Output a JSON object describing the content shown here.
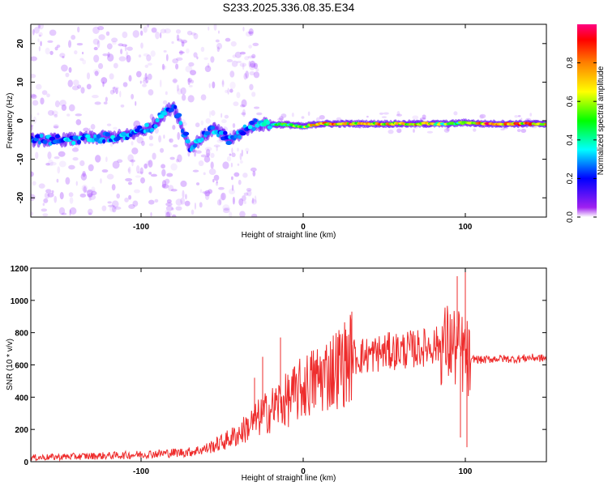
{
  "title": "S233.2025.336.08.35.E34",
  "chart_data": [
    {
      "type": "heatmap",
      "xlabel": "Height of straight line (km)",
      "ylabel": "Frequency (Hz)",
      "xlim": [
        -168,
        150
      ],
      "ylim": [
        -25,
        25
      ],
      "x_ticks": [
        -100,
        0,
        100
      ],
      "x_tick_labels": [
        "-100",
        "0",
        "100"
      ],
      "y_ticks": [
        -20,
        -10,
        0,
        10,
        20
      ],
      "y_tick_labels": [
        "-20",
        "-10",
        "0",
        "10",
        "20"
      ],
      "colorbar": {
        "label": "Normalized spectral amplitude",
        "range": [
          0,
          1
        ],
        "ticks": [
          0.0,
          0.2,
          0.4,
          0.6,
          0.8
        ],
        "tick_labels": [
          "0.0",
          "0.2",
          "0.4",
          "0.6",
          "0.8"
        ],
        "colors": [
          "#ffffff",
          "#8f00ff",
          "#0000ff",
          "#00ffff",
          "#00ff00",
          "#ffff00",
          "#ff8000",
          "#ff0000",
          "#ff0080"
        ]
      },
      "ridge": [
        {
          "x": -168,
          "f": -5,
          "amp": 0.3
        },
        {
          "x": -150,
          "f": -5,
          "amp": 0.35
        },
        {
          "x": -130,
          "f": -4.5,
          "amp": 0.35
        },
        {
          "x": -110,
          "f": -4,
          "amp": 0.35
        },
        {
          "x": -95,
          "f": -2,
          "amp": 0.35
        },
        {
          "x": -80,
          "f": 4,
          "amp": 0.3
        },
        {
          "x": -70,
          "f": -7,
          "amp": 0.35
        },
        {
          "x": -55,
          "f": -2,
          "amp": 0.35
        },
        {
          "x": -45,
          "f": -5,
          "amp": 0.3
        },
        {
          "x": -30,
          "f": -1,
          "amp": 0.35
        },
        {
          "x": -20,
          "f": -1,
          "amp": 0.5
        },
        {
          "x": -10,
          "f": -1,
          "amp": 0.55
        },
        {
          "x": 0,
          "f": -1.5,
          "amp": 0.65
        },
        {
          "x": 10,
          "f": -0.8,
          "amp": 0.9
        },
        {
          "x": 30,
          "f": -0.8,
          "amp": 0.85
        },
        {
          "x": 50,
          "f": -0.8,
          "amp": 0.85
        },
        {
          "x": 70,
          "f": -0.8,
          "amp": 0.85
        },
        {
          "x": 90,
          "f": -0.8,
          "amp": 0.6
        },
        {
          "x": 100,
          "f": -0.5,
          "amp": 0.6
        },
        {
          "x": 110,
          "f": -0.8,
          "amp": 0.95
        },
        {
          "x": 130,
          "f": -0.8,
          "amp": 0.95
        },
        {
          "x": 150,
          "f": -0.8,
          "amp": 0.8
        }
      ]
    },
    {
      "type": "line",
      "xlabel": "Height of straight line (km)",
      "ylabel": "SNR (10 * v/v)",
      "xlim": [
        -168,
        150
      ],
      "ylim": [
        0,
        1200
      ],
      "x_ticks": [
        -100,
        0,
        100
      ],
      "x_tick_labels": [
        "-100",
        "0",
        "100"
      ],
      "y_ticks": [
        0,
        200,
        400,
        600,
        800,
        1000,
        1200
      ],
      "y_tick_labels": [
        "0",
        "200",
        "400",
        "600",
        "800",
        "1000",
        "1200"
      ],
      "color": "#ee2b2b",
      "x": [
        -168,
        -150,
        -130,
        -110,
        -90,
        -70,
        -60,
        -50,
        -40,
        -30,
        -25,
        -20,
        -15,
        -10,
        -5,
        0,
        10,
        20,
        25,
        30,
        40,
        50,
        60,
        70,
        80,
        90,
        95,
        100,
        103,
        105,
        110,
        120,
        130,
        140,
        150
      ],
      "y": [
        25,
        30,
        35,
        40,
        50,
        60,
        80,
        120,
        170,
        250,
        290,
        320,
        360,
        380,
        420,
        460,
        520,
        580,
        610,
        650,
        660,
        680,
        690,
        700,
        720,
        730,
        700,
        650,
        600,
        640,
        630,
        640,
        635,
        645,
        640
      ],
      "spikes": [
        {
          "x": -30,
          "y": 520
        },
        {
          "x": -25,
          "y": 650
        },
        {
          "x": -14,
          "y": 770
        },
        {
          "x": 30,
          "y": 930
        },
        {
          "x": 95,
          "y": 1150
        },
        {
          "x": 97,
          "y": 150
        },
        {
          "x": 100,
          "y": 1200
        },
        {
          "x": 101,
          "y": 90
        }
      ]
    }
  ]
}
